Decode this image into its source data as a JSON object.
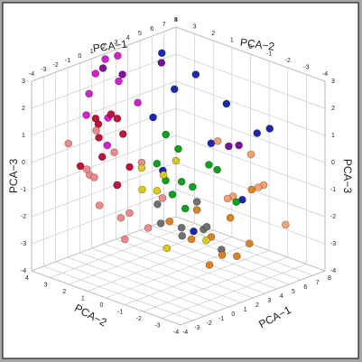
{
  "chart_data": {
    "type": "scatter3d",
    "xlabel": "PCA−1",
    "ylabel": "PCA−2",
    "zlabel": "PCA−3",
    "xlim": [
      -4,
      8
    ],
    "ylim": [
      -4,
      4
    ],
    "zlim": [
      -4,
      3
    ],
    "xticks": [
      -4,
      -3,
      -2,
      -1,
      0,
      1,
      2,
      3,
      4,
      5,
      6,
      7,
      8
    ],
    "yticks": [
      -4,
      -3,
      -2,
      -1,
      0,
      1,
      2,
      3,
      4
    ],
    "zticks": [
      -4,
      -3,
      -2,
      -1,
      0,
      1,
      2,
      3
    ],
    "grid": true,
    "series": [
      {
        "color": "#f08a8a",
        "x": [
          -3,
          -2.5,
          -2,
          -1.5,
          -1,
          -0.5,
          0,
          0.5,
          -2.8,
          -1.2,
          -0.2,
          1,
          -2.2,
          -0.8
        ],
        "y": [
          1,
          2,
          0.5,
          2.5,
          1.5,
          0,
          2,
          1,
          2.8,
          0.8,
          1.2,
          0.2,
          1.8,
          2.6
        ],
        "z": [
          -1,
          0,
          -1.5,
          -0.5,
          0.5,
          -2,
          -1,
          0,
          0.8,
          -2.5,
          -1.8,
          -1.2,
          -0.3,
          1
        ]
      },
      {
        "color": "#c0143c",
        "x": [
          -2,
          -1.5,
          -1,
          -0.5,
          0,
          0.5,
          -1.8,
          -0.8,
          0.8,
          -1.2
        ],
        "y": [
          1.5,
          2,
          2.5,
          1,
          3,
          2,
          2.8,
          1.8,
          2.5,
          1.2
        ],
        "z": [
          0.5,
          1,
          1.5,
          0,
          1,
          0.8,
          -0.2,
          1.8,
          1.2,
          -0.6
        ]
      },
      {
        "color": "#d020d0",
        "x": [
          -1,
          0,
          1,
          2,
          2.5,
          0.5,
          1.5,
          3,
          -0.5
        ],
        "y": [
          3,
          3.5,
          3.8,
          3.2,
          2.5,
          2.8,
          3.6,
          3.9,
          2.2
        ],
        "z": [
          1.5,
          2,
          2.5,
          2.2,
          1.5,
          1.2,
          3,
          2.8,
          0.5
        ]
      },
      {
        "color": "#10a020",
        "x": [
          1,
          1.5,
          2,
          2.5,
          3,
          3.5,
          4,
          2.2,
          1.2,
          3.2,
          4.5
        ],
        "y": [
          0.5,
          -0.5,
          0,
          1,
          -1,
          0.2,
          -0.8,
          0.8,
          -0.2,
          0.4,
          -1.5
        ],
        "z": [
          0,
          -0.5,
          0.5,
          -1,
          0,
          -1.2,
          -0.4,
          0.8,
          -1,
          -2,
          -1.5
        ]
      },
      {
        "color": "#1a2ab0",
        "x": [
          3,
          4,
          5,
          6,
          7,
          4.5,
          5.5,
          6.5,
          3.5,
          5,
          2.5
        ],
        "y": [
          2,
          1.5,
          1,
          0,
          -1,
          2.5,
          0.5,
          -2,
          1.8,
          -1.5,
          -0.5
        ],
        "z": [
          1,
          2,
          2.5,
          1.5,
          0.5,
          3,
          0,
          1,
          -1,
          -1.5,
          -2.5
        ]
      },
      {
        "color": "#e08020",
        "x": [
          0,
          1,
          2,
          3,
          4,
          0.5,
          1.5,
          2.5,
          3.5,
          5
        ],
        "y": [
          -2,
          -3,
          -1,
          -2.5,
          -1.5,
          -0.5,
          -2,
          -3.5,
          -0.8,
          -2
        ],
        "z": [
          -2,
          -2.5,
          -1.5,
          -3,
          -2,
          -1.8,
          -3.2,
          -2.2,
          -2.8,
          -1
        ]
      },
      {
        "color": "#707070",
        "x": [
          -1,
          0,
          1,
          2,
          -0.5,
          0.5,
          1.5,
          2.5
        ],
        "y": [
          -1,
          -1.5,
          -2,
          -1,
          -0.5,
          -2.5,
          -0.5,
          -2
        ],
        "z": [
          -1.5,
          -2,
          -1.8,
          -1.2,
          -1,
          -1.5,
          -2.2,
          -2.8
        ]
      },
      {
        "color": "#d8c820",
        "x": [
          -1,
          0,
          1,
          0.5,
          -0.5,
          1.5,
          2
        ],
        "y": [
          0,
          -0.5,
          0.5,
          1,
          -1,
          -0.2,
          -1.5
        ],
        "z": [
          -0.5,
          0,
          -1,
          -0.2,
          -2.5,
          0.2,
          -2.5
        ]
      },
      {
        "color": "#f4a070",
        "x": [
          3,
          4,
          5,
          6,
          4.5,
          5.5,
          6.5
        ],
        "y": [
          -2,
          -3,
          -1,
          -2,
          -0.5,
          -3.5,
          -1
        ],
        "z": [
          -1,
          -0.5,
          -1.5,
          -1,
          0.5,
          -2,
          -0.2
        ]
      },
      {
        "color": "#7a10a0",
        "x": [
          2,
          4,
          6.5,
          1,
          5.8
        ],
        "y": [
          3,
          2.2,
          0.2,
          3.4,
          -0.8
        ],
        "z": [
          2.5,
          2.8,
          -0.2,
          2.8,
          0.2
        ]
      }
    ]
  }
}
